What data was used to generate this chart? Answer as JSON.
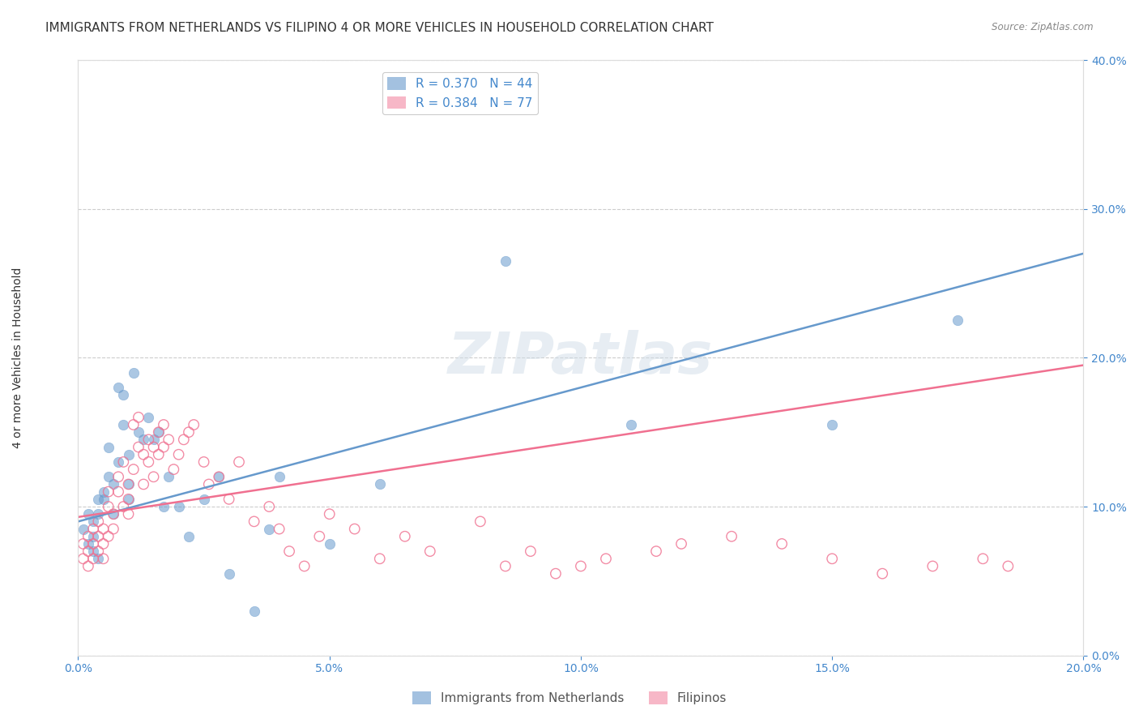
{
  "title": "IMMIGRANTS FROM NETHERLANDS VS FILIPINO 4 OR MORE VEHICLES IN HOUSEHOLD CORRELATION CHART",
  "source": "Source: ZipAtlas.com",
  "ylabel": "4 or more Vehicles in Household",
  "xlabel": "",
  "xlim": [
    0.0,
    0.2
  ],
  "ylim": [
    0.0,
    0.4
  ],
  "xticks": [
    0.0,
    0.05,
    0.1,
    0.15,
    0.2
  ],
  "yticks": [
    0.0,
    0.1,
    0.2,
    0.3,
    0.4
  ],
  "legend1_label": "R = 0.370   N = 44",
  "legend2_label": "R = 0.384   N = 77",
  "legend1_color": "#7bafd4",
  "legend2_color": "#f08080",
  "watermark": "ZIPatlas",
  "blue_scatter_x": [
    0.001,
    0.002,
    0.002,
    0.003,
    0.003,
    0.003,
    0.004,
    0.004,
    0.004,
    0.005,
    0.005,
    0.006,
    0.006,
    0.007,
    0.007,
    0.008,
    0.008,
    0.009,
    0.009,
    0.01,
    0.01,
    0.01,
    0.011,
    0.012,
    0.013,
    0.014,
    0.015,
    0.016,
    0.017,
    0.018,
    0.02,
    0.022,
    0.025,
    0.028,
    0.03,
    0.035,
    0.038,
    0.04,
    0.05,
    0.06,
    0.085,
    0.11,
    0.15,
    0.175
  ],
  "blue_scatter_y": [
    0.085,
    0.095,
    0.075,
    0.09,
    0.08,
    0.07,
    0.105,
    0.095,
    0.065,
    0.11,
    0.105,
    0.14,
    0.12,
    0.115,
    0.095,
    0.18,
    0.13,
    0.175,
    0.155,
    0.135,
    0.115,
    0.105,
    0.19,
    0.15,
    0.145,
    0.16,
    0.145,
    0.15,
    0.1,
    0.12,
    0.1,
    0.08,
    0.105,
    0.12,
    0.055,
    0.03,
    0.085,
    0.12,
    0.075,
    0.115,
    0.265,
    0.155,
    0.155,
    0.225
  ],
  "pink_scatter_x": [
    0.001,
    0.001,
    0.002,
    0.002,
    0.002,
    0.003,
    0.003,
    0.003,
    0.004,
    0.004,
    0.004,
    0.005,
    0.005,
    0.005,
    0.006,
    0.006,
    0.006,
    0.007,
    0.007,
    0.008,
    0.008,
    0.009,
    0.009,
    0.01,
    0.01,
    0.01,
    0.011,
    0.011,
    0.012,
    0.012,
    0.013,
    0.013,
    0.014,
    0.014,
    0.015,
    0.015,
    0.016,
    0.016,
    0.017,
    0.017,
    0.018,
    0.019,
    0.02,
    0.021,
    0.022,
    0.023,
    0.025,
    0.026,
    0.028,
    0.03,
    0.032,
    0.035,
    0.038,
    0.04,
    0.042,
    0.045,
    0.048,
    0.05,
    0.055,
    0.06,
    0.065,
    0.07,
    0.08,
    0.085,
    0.09,
    0.095,
    0.1,
    0.105,
    0.115,
    0.12,
    0.13,
    0.14,
    0.15,
    0.16,
    0.17,
    0.18,
    0.185
  ],
  "pink_scatter_y": [
    0.065,
    0.075,
    0.06,
    0.07,
    0.08,
    0.065,
    0.075,
    0.085,
    0.07,
    0.08,
    0.09,
    0.075,
    0.085,
    0.065,
    0.1,
    0.11,
    0.08,
    0.095,
    0.085,
    0.12,
    0.11,
    0.1,
    0.13,
    0.105,
    0.095,
    0.115,
    0.155,
    0.125,
    0.14,
    0.16,
    0.135,
    0.115,
    0.145,
    0.13,
    0.14,
    0.12,
    0.15,
    0.135,
    0.14,
    0.155,
    0.145,
    0.125,
    0.135,
    0.145,
    0.15,
    0.155,
    0.13,
    0.115,
    0.12,
    0.105,
    0.13,
    0.09,
    0.1,
    0.085,
    0.07,
    0.06,
    0.08,
    0.095,
    0.085,
    0.065,
    0.08,
    0.07,
    0.09,
    0.06,
    0.07,
    0.055,
    0.06,
    0.065,
    0.07,
    0.075,
    0.08,
    0.075,
    0.065,
    0.055,
    0.06,
    0.065,
    0.06
  ],
  "blue_line_x": [
    0.0,
    0.2
  ],
  "blue_line_y": [
    0.09,
    0.27
  ],
  "pink_line_x": [
    0.0,
    0.2
  ],
  "pink_line_y": [
    0.093,
    0.195
  ],
  "blue_color": "#6699cc",
  "pink_color": "#f07090",
  "title_fontsize": 11,
  "axis_label_fontsize": 10,
  "tick_fontsize": 10,
  "grid_color": "#cccccc",
  "background_color": "#ffffff"
}
